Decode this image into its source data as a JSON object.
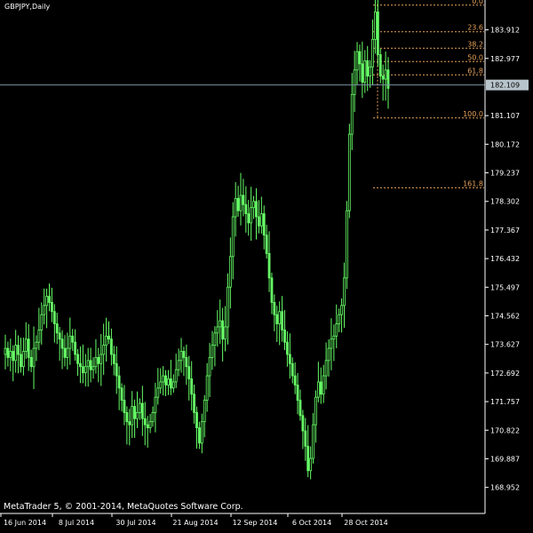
{
  "chart_title": "GBPJPY,Daily",
  "copyright": "MetaTrader 5, © 2001-2014, MetaQuotes Software Corp.",
  "colors": {
    "background": "#000000",
    "axis": "#ffffff",
    "candle": "#66ff66",
    "fibonacci": "#e8a25a",
    "current_price_line": "#7a8fa0",
    "current_price_box": "#b8c4cc"
  },
  "chart_data": {
    "type": "candlestick",
    "title": "GBPJPY,Daily",
    "ylim": [
      168.1,
      184.8
    ],
    "y_ticks": [
      "183.912",
      "182.977",
      "181.107",
      "180.172",
      "179.237",
      "178.302",
      "177.367",
      "176.432",
      "175.497",
      "174.562",
      "173.627",
      "172.692",
      "171.757",
      "170.822",
      "169.887",
      "168.952"
    ],
    "x_ticks": [
      "16 Jun 2014",
      "8 Jul 2014",
      "30 Jul 2014",
      "21 Aug 2014",
      "12 Sep 2014",
      "6 Oct 2014",
      "28 Oct 2014"
    ],
    "current_price": 182.109,
    "current_price_label": "182.109",
    "fibonacci": {
      "high": 184.72,
      "low": 181.03,
      "levels": [
        {
          "ratio": 0.0,
          "label": "0.0"
        },
        {
          "ratio": 23.6,
          "label": "23.6"
        },
        {
          "ratio": 38.2,
          "label": "38.2"
        },
        {
          "ratio": 50.0,
          "label": "50.0"
        },
        {
          "ratio": 61.8,
          "label": "61.8"
        },
        {
          "ratio": 100.0,
          "label": "100.0"
        },
        {
          "ratio": 161.8,
          "label": "161.8"
        }
      ]
    },
    "close": [
      173.5,
      173.2,
      173.4,
      173.1,
      173.6,
      173.3,
      172.9,
      173.4,
      173.8,
      173.2,
      172.9,
      173.5,
      173.7,
      174.1,
      174.6,
      174.9,
      175.2,
      175.0,
      174.7,
      174.3,
      174.0,
      173.8,
      173.5,
      173.2,
      173.5,
      173.9,
      173.7,
      173.3,
      173.0,
      172.9,
      172.7,
      172.9,
      173.1,
      172.8,
      172.9,
      173.2,
      173.0,
      173.3,
      173.6,
      173.9,
      173.8,
      173.3,
      173.0,
      172.6,
      172.2,
      171.8,
      171.4,
      171.1,
      171.0,
      171.6,
      171.2,
      171.4,
      171.7,
      171.2,
      171.0,
      170.9,
      171.1,
      171.4,
      171.9,
      172.2,
      172.4,
      172.6,
      172.3,
      172.5,
      172.2,
      172.4,
      172.8,
      173.1,
      173.4,
      173.2,
      172.9,
      172.5,
      172.0,
      171.4,
      170.9,
      170.4,
      171.1,
      171.8,
      172.6,
      173.2,
      173.6,
      174.0,
      174.2,
      174.4,
      173.8,
      174.2,
      175.5,
      176.5,
      177.8,
      178.4,
      178.0,
      178.5,
      178.2,
      177.9,
      177.6,
      178.1,
      178.3,
      177.8,
      177.5,
      177.9,
      177.2,
      176.6,
      175.8,
      175.0,
      174.6,
      174.3,
      174.7,
      174.1,
      173.7,
      173.3,
      173.0,
      172.6,
      172.3,
      171.8,
      171.3,
      170.8,
      170.3,
      169.5,
      169.9,
      171.0,
      171.9,
      172.4,
      172.0,
      172.6,
      173.1,
      173.5,
      173.8,
      173.9,
      174.3,
      174.6,
      174.9,
      175.8,
      178.0,
      180.5,
      181.8,
      182.6,
      183.2,
      182.8,
      182.2,
      182.9,
      182.4,
      182.7,
      183.6,
      184.5,
      183.1,
      182.4,
      182.3,
      182.6,
      182.0
    ]
  }
}
